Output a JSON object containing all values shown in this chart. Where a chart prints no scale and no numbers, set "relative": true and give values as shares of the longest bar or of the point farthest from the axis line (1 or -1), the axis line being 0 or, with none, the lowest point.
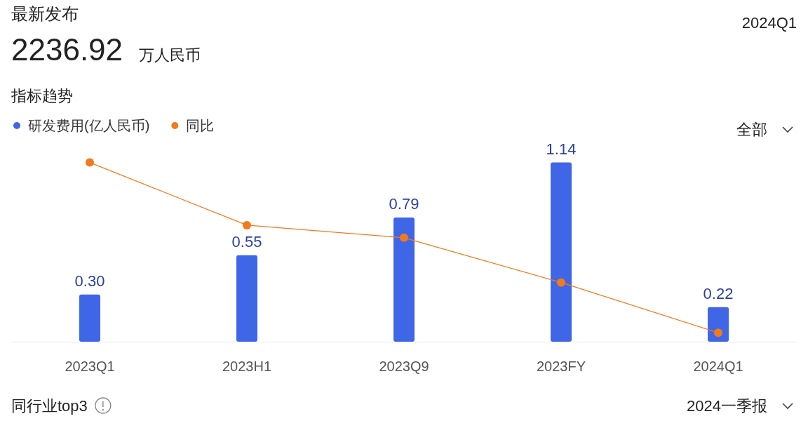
{
  "chart_data": [
    {
      "type": "bar",
      "title": "指标趋势",
      "categories": [
        "2023Q1",
        "2023H1",
        "2023Q9",
        "2023FY",
        "2024Q1"
      ],
      "series": [
        {
          "name": "研发费用(亿人民币)",
          "color": "#4066e8",
          "values": [
            0.3,
            0.55,
            0.79,
            1.14,
            0.22
          ],
          "value_labels": [
            "0.30",
            "0.55",
            "0.79",
            "1.14",
            "0.22"
          ]
        }
      ],
      "legend": "top left",
      "annotations": [
        "最新发布",
        "2236.92",
        "万人民币",
        "2024Q1",
        "全部",
        "同行业top3",
        "2024一季报"
      ]
    },
    {
      "type": "line",
      "relative": true,
      "marker": "circle",
      "line_style": "solid",
      "legend": "top left",
      "categories": [
        null,
        null,
        null,
        null,
        null
      ],
      "series": [
        {
          "name": "同比",
          "color": "#f27a1a",
          "values": [
            1,
            0.65,
            0.58,
            0.33,
            0.05
          ]
        }
      ]
    }
  ]
}
